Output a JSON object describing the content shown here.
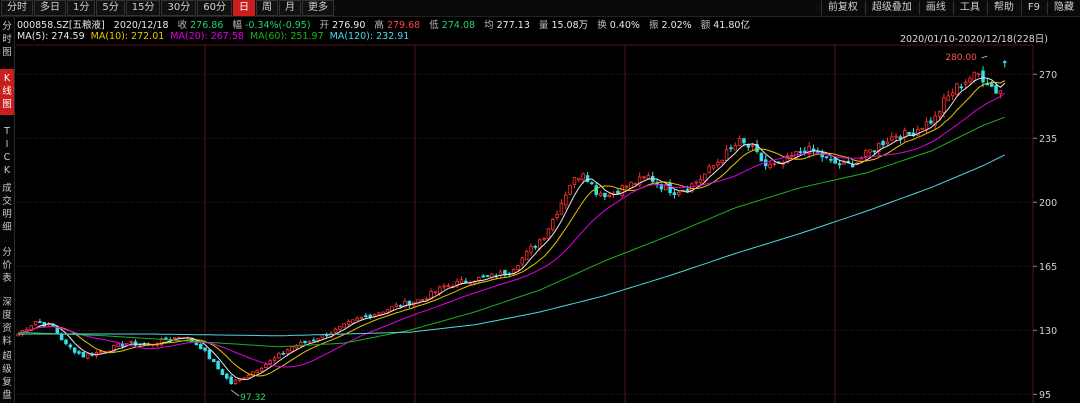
{
  "toolbar": {
    "left_buttons": [
      "分时",
      "多日",
      "1分",
      "5分",
      "15分",
      "30分",
      "60分",
      "日",
      "周",
      "月",
      "更多"
    ],
    "active": "日",
    "right_buttons": [
      "前复权",
      "超级叠加",
      "画线",
      "工具",
      "帮助",
      "F9",
      "隐藏"
    ]
  },
  "left_tabs": [
    "分时图",
    "K线图",
    "TICK",
    "成交明细",
    "分价表",
    "深度资料",
    "超级复盘"
  ],
  "left_tab_active": "K线图",
  "stock": {
    "code": "000858.SZ[五粮液]",
    "date": "2020/12/18",
    "close_label": "收",
    "close": "276.86",
    "change_label": "幅",
    "change": "-0.34%(-0.95)",
    "open_label": "开",
    "open": "276.90",
    "high_label": "高",
    "high": "279.68",
    "low_label": "低",
    "low": "274.08",
    "avg_label": "均",
    "avg": "277.13",
    "volume_label": "量",
    "volume": "15.08万",
    "turnover_label": "换",
    "turnover": "0.40%",
    "amplitude_label": "振",
    "amplitude": "2.02%",
    "amount_label": "额",
    "amount": "41.80亿"
  },
  "ma": [
    {
      "label": "MA(5):",
      "value": "274.59",
      "color": "#e8e8e8"
    },
    {
      "label": "MA(10):",
      "value": "272.01",
      "color": "#e7c400"
    },
    {
      "label": "MA(20):",
      "value": "267.58",
      "color": "#e000e0"
    },
    {
      "label": "MA(60):",
      "value": "251.97",
      "color": "#1fb01f"
    },
    {
      "label": "MA(120):",
      "value": "232.91",
      "color": "#4fd6e0"
    }
  ],
  "range_text": "2020/01/10-2020/12/18(228日)",
  "colors": {
    "up": "#ff3030",
    "down": "#33e0e8",
    "grid": "#5a1414"
  },
  "chart_data": {
    "type": "candlestick",
    "x_count": 228,
    "y_ticks": [
      95,
      130,
      165,
      200,
      235,
      270
    ],
    "ylim": [
      93,
      286
    ],
    "annotations": [
      {
        "text": "280.00",
        "x_index": 223,
        "value": 280.0
      },
      {
        "text": "97.32",
        "x_index": 49,
        "value": 97.32
      }
    ],
    "series_anchor": [
      [
        0,
        128
      ],
      [
        4,
        135
      ],
      [
        8,
        132
      ],
      [
        11,
        122
      ],
      [
        15,
        116
      ],
      [
        20,
        119
      ],
      [
        25,
        123
      ],
      [
        30,
        122
      ],
      [
        34,
        125
      ],
      [
        38,
        127
      ],
      [
        42,
        121
      ],
      [
        46,
        109
      ],
      [
        49,
        101
      ],
      [
        53,
        106
      ],
      [
        58,
        113
      ],
      [
        63,
        121
      ],
      [
        68,
        125
      ],
      [
        73,
        130
      ],
      [
        78,
        136
      ],
      [
        83,
        140
      ],
      [
        88,
        144
      ],
      [
        93,
        147
      ],
      [
        98,
        154
      ],
      [
        103,
        157
      ],
      [
        108,
        159
      ],
      [
        113,
        162
      ],
      [
        117,
        172
      ],
      [
        121,
        182
      ],
      [
        124,
        195
      ],
      [
        127,
        210
      ],
      [
        130,
        217
      ],
      [
        133,
        206
      ],
      [
        136,
        204
      ],
      [
        139,
        208
      ],
      [
        142,
        211
      ],
      [
        145,
        214
      ],
      [
        148,
        209
      ],
      [
        151,
        206
      ],
      [
        154,
        208
      ],
      [
        157,
        213
      ],
      [
        160,
        220
      ],
      [
        163,
        227
      ],
      [
        166,
        233
      ],
      [
        169,
        229
      ],
      [
        172,
        220
      ],
      [
        175,
        220
      ],
      [
        178,
        225
      ],
      [
        181,
        229
      ],
      [
        184,
        227
      ],
      [
        187,
        222
      ],
      [
        190,
        220
      ],
      [
        193,
        222
      ],
      [
        196,
        228
      ],
      [
        199,
        233
      ],
      [
        202,
        237
      ],
      [
        205,
        237
      ],
      [
        208,
        242
      ],
      [
        211,
        246
      ],
      [
        213,
        255
      ],
      [
        216,
        263
      ],
      [
        219,
        268
      ],
      [
        221,
        270
      ],
      [
        223,
        266
      ],
      [
        225,
        261
      ],
      [
        227,
        262
      ],
      [
        228,
        268
      ],
      [
        229,
        271
      ],
      [
        231,
        274
      ],
      [
        233,
        276.9
      ]
    ],
    "ma_anchor": {
      "ma60": [
        [
          0,
          129
        ],
        [
          20,
          127
        ],
        [
          40,
          124
        ],
        [
          60,
          121
        ],
        [
          75,
          123
        ],
        [
          90,
          130
        ],
        [
          105,
          140
        ],
        [
          120,
          152
        ],
        [
          135,
          168
        ],
        [
          150,
          182
        ],
        [
          165,
          197
        ],
        [
          180,
          208
        ],
        [
          195,
          216
        ],
        [
          210,
          228
        ],
        [
          222,
          242
        ],
        [
          233,
          252
        ]
      ],
      "ma120": [
        [
          0,
          128
        ],
        [
          30,
          128
        ],
        [
          60,
          127
        ],
        [
          90,
          129
        ],
        [
          105,
          133
        ],
        [
          120,
          140
        ],
        [
          135,
          149
        ],
        [
          150,
          160
        ],
        [
          165,
          172
        ],
        [
          180,
          183
        ],
        [
          195,
          195
        ],
        [
          210,
          208
        ],
        [
          222,
          220
        ],
        [
          233,
          233
        ]
      ]
    }
  }
}
